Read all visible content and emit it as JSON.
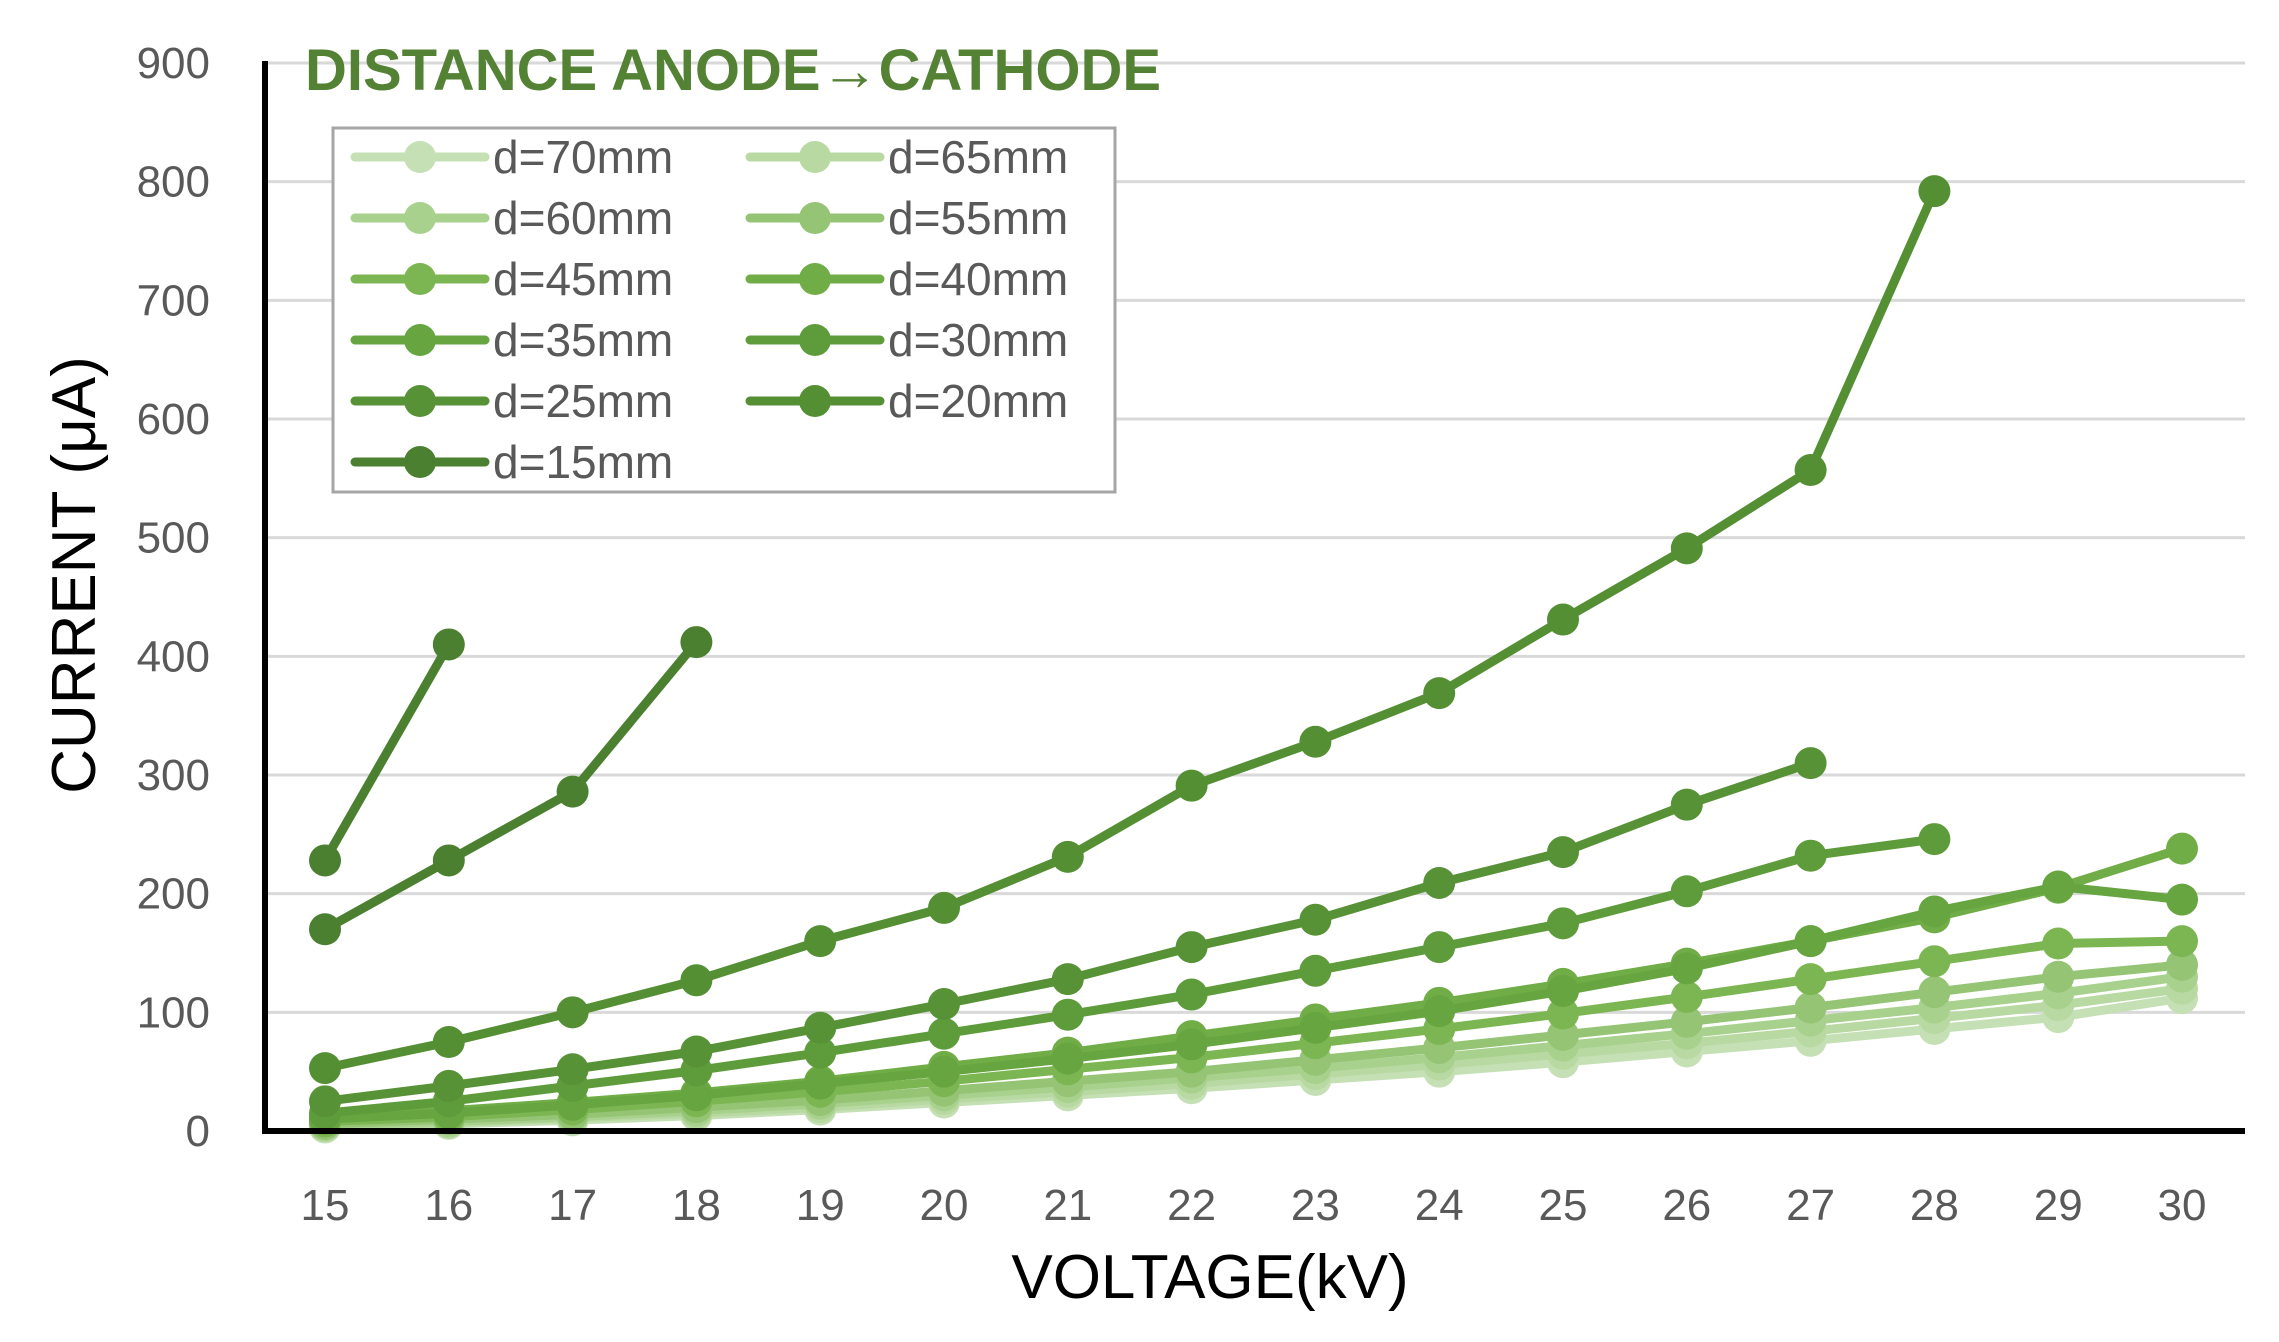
{
  "chart_data": {
    "type": "line",
    "title": "DISTANCE ANODE→CATHODE",
    "xlabel": "VOLTAGE(kV)",
    "ylabel": "CURRENT (μA)",
    "xlim": [
      15,
      30
    ],
    "ylim": [
      0,
      900
    ],
    "x_ticks": [
      "15",
      "16",
      "17",
      "18",
      "19",
      "20",
      "21",
      "22",
      "23",
      "24",
      "25",
      "26",
      "27",
      "28",
      "29",
      "30"
    ],
    "y_ticks": [
      "0",
      "100",
      "200",
      "300",
      "400",
      "500",
      "600",
      "700",
      "800",
      "900"
    ],
    "grid": true,
    "legend_position": "top-left",
    "series": [
      {
        "name": "d=70mm",
        "color": "#c5e0b4",
        "x": [
          15,
          16,
          17,
          18,
          19,
          20,
          21,
          22,
          23,
          24,
          25,
          26,
          27,
          28,
          29,
          30
        ],
        "y": [
          3,
          6,
          9,
          13,
          18,
          24,
          30,
          36,
          43,
          50,
          58,
          67,
          76,
          86,
          96,
          112
        ]
      },
      {
        "name": "d=65mm",
        "color": "#b8d9a2",
        "x": [
          15,
          16,
          17,
          18,
          19,
          20,
          21,
          22,
          23,
          24,
          25,
          26,
          27,
          28,
          29,
          30
        ],
        "y": [
          4,
          7,
          11,
          15,
          20,
          27,
          33,
          40,
          48,
          56,
          65,
          74,
          84,
          95,
          106,
          120
        ]
      },
      {
        "name": "d=60mm",
        "color": "#a9d18e",
        "x": [
          15,
          16,
          17,
          18,
          19,
          20,
          21,
          22,
          23,
          24,
          25,
          26,
          27,
          28,
          29,
          30
        ],
        "y": [
          5,
          8,
          12,
          17,
          23,
          30,
          37,
          45,
          53,
          62,
          72,
          82,
          93,
          104,
          116,
          130
        ]
      },
      {
        "name": "d=55mm",
        "color": "#94c474",
        "x": [
          15,
          16,
          17,
          18,
          19,
          20,
          21,
          22,
          23,
          24,
          25,
          26,
          27,
          28,
          29,
          30
        ],
        "y": [
          6,
          10,
          14,
          20,
          26,
          34,
          42,
          50,
          60,
          70,
          81,
          92,
          104,
          117,
          130,
          140
        ]
      },
      {
        "name": "d=45mm",
        "color": "#7cb652",
        "x": [
          15,
          16,
          17,
          18,
          19,
          20,
          21,
          22,
          23,
          24,
          25,
          26,
          27,
          28,
          29,
          30
        ],
        "y": [
          8,
          12,
          18,
          25,
          33,
          42,
          52,
          62,
          74,
          86,
          99,
          113,
          128,
          143,
          158,
          160
        ]
      },
      {
        "name": "d=40mm",
        "color": "#70ad47",
        "x": [
          15,
          16,
          17,
          18,
          19,
          20,
          21,
          22,
          23,
          24,
          25,
          26,
          27,
          28,
          29,
          30
        ],
        "y": [
          12,
          17,
          24,
          32,
          42,
          54,
          66,
          80,
          94,
          108,
          124,
          141,
          160,
          180,
          205,
          238
        ]
      },
      {
        "name": "d=35mm",
        "color": "#66a540",
        "x": [
          15,
          16,
          17,
          18,
          19,
          20,
          21,
          22,
          23,
          24,
          25,
          26,
          27,
          28,
          29,
          30
        ],
        "y": [
          10,
          15,
          22,
          30,
          40,
          50,
          61,
          73,
          87,
          101,
          118,
          137,
          160,
          185,
          206,
          195
        ]
      },
      {
        "name": "d=30mm",
        "color": "#5e9c3b",
        "x": [
          15,
          16,
          17,
          18,
          19,
          20,
          21,
          22,
          23,
          24,
          25,
          26,
          27,
          28
        ],
        "y": [
          15,
          25,
          38,
          51,
          66,
          82,
          98,
          115,
          135,
          155,
          175,
          202,
          232,
          246
        ]
      },
      {
        "name": "d=25mm",
        "color": "#579237",
        "x": [
          15,
          16,
          17,
          18,
          19,
          20,
          21,
          22,
          23,
          24,
          25,
          26,
          27
        ],
        "y": [
          25,
          38,
          52,
          67,
          87,
          107,
          128,
          155,
          178,
          209,
          235,
          275,
          310
        ]
      },
      {
        "name": "d=20mm",
        "color": "#548f34",
        "x": [
          15,
          16,
          17,
          18,
          19,
          20,
          21,
          22,
          23,
          24,
          25,
          26,
          27,
          28
        ],
        "y": [
          53,
          75,
          100,
          127,
          160,
          188,
          231,
          291,
          328,
          369,
          431,
          491,
          557,
          792
        ]
      },
      {
        "name": "d=15mm",
        "color": "#4b8030",
        "x": [
          15,
          16,
          17,
          18
        ],
        "y": [
          170,
          228,
          286,
          412
        ]
      },
      {
        "name": "",
        "color": "#4b8030",
        "x": [
          15,
          16
        ],
        "y": [
          228,
          410
        ]
      }
    ]
  }
}
